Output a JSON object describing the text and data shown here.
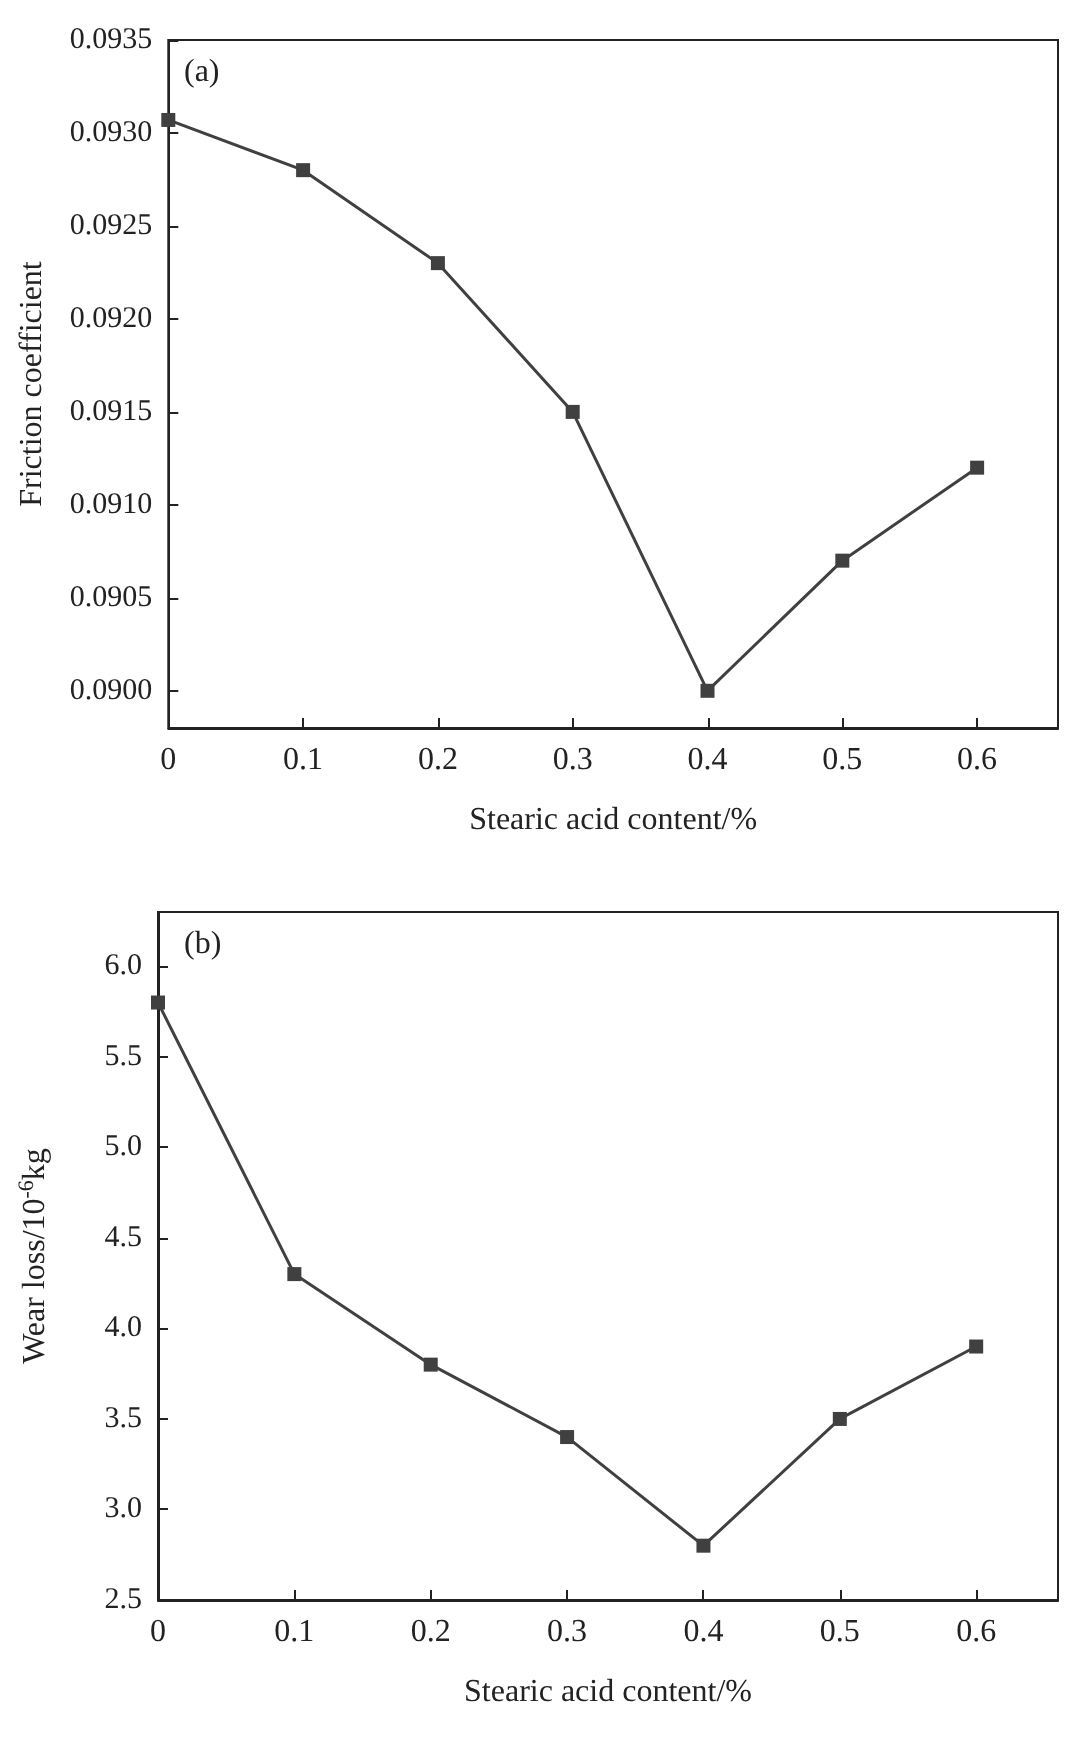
{
  "chart_data": [
    {
      "type": "line",
      "xlabel": "Stearic acid content/%",
      "ylabel": "Friction coefficient",
      "annotations": [
        "(a)"
      ],
      "x": [
        0,
        0.1,
        0.2,
        0.3,
        0.4,
        0.5,
        0.6
      ],
      "series": [
        {
          "color": "#404040",
          "values": [
            0.09307,
            0.0928,
            0.0923,
            0.0915,
            0.09,
            0.0907,
            0.0912
          ]
        }
      ],
      "xlim": [
        0,
        0.66
      ],
      "xticks": [
        0,
        0.1,
        0.2,
        0.3,
        0.4,
        0.5,
        0.6
      ],
      "ylim": [
        0.0898,
        0.0935
      ],
      "yticks": [
        {
          "value": 0.09,
          "label": "0.0900"
        },
        {
          "value": 0.0905,
          "label": "0.0905"
        },
        {
          "value": 0.091,
          "label": "0.0910"
        },
        {
          "value": 0.0915,
          "label": "0.0915"
        },
        {
          "value": 0.092,
          "label": "0.0920"
        },
        {
          "value": 0.0925,
          "label": "0.0925"
        },
        {
          "value": 0.093,
          "label": "0.0930"
        },
        {
          "value": 0.0935,
          "label": "0.0935"
        }
      ],
      "marker": "square",
      "line_style": "solid",
      "grid": false
    },
    {
      "type": "line",
      "xlabel": "Stearic acid content/%",
      "ylabel": "Wear loss/10$^{-6}$kg",
      "annotations": [
        "(b)"
      ],
      "x": [
        0,
        0.1,
        0.2,
        0.3,
        0.4,
        0.5,
        0.6
      ],
      "series": [
        {
          "color": "#404040",
          "values": [
            5.8,
            4.3,
            3.8,
            3.4,
            2.8,
            3.5,
            3.9
          ]
        }
      ],
      "xlim": [
        0,
        0.66
      ],
      "xticks": [
        0,
        0.1,
        0.2,
        0.3,
        0.4,
        0.5,
        0.6
      ],
      "ylim": [
        2.5,
        6.3
      ],
      "yticks": [
        {
          "value": 2.5,
          "label": "2.5"
        },
        {
          "value": 3.0,
          "label": "3.0"
        },
        {
          "value": 3.5,
          "label": "3.5"
        },
        {
          "value": 4.0,
          "label": "4.0"
        },
        {
          "value": 4.5,
          "label": "4.5"
        },
        {
          "value": 5.0,
          "label": "5.0"
        },
        {
          "value": 5.5,
          "label": "5.5"
        },
        {
          "value": 6.0,
          "label": "6.0"
        }
      ],
      "marker": "square",
      "line_style": "solid",
      "grid": false
    }
  ]
}
